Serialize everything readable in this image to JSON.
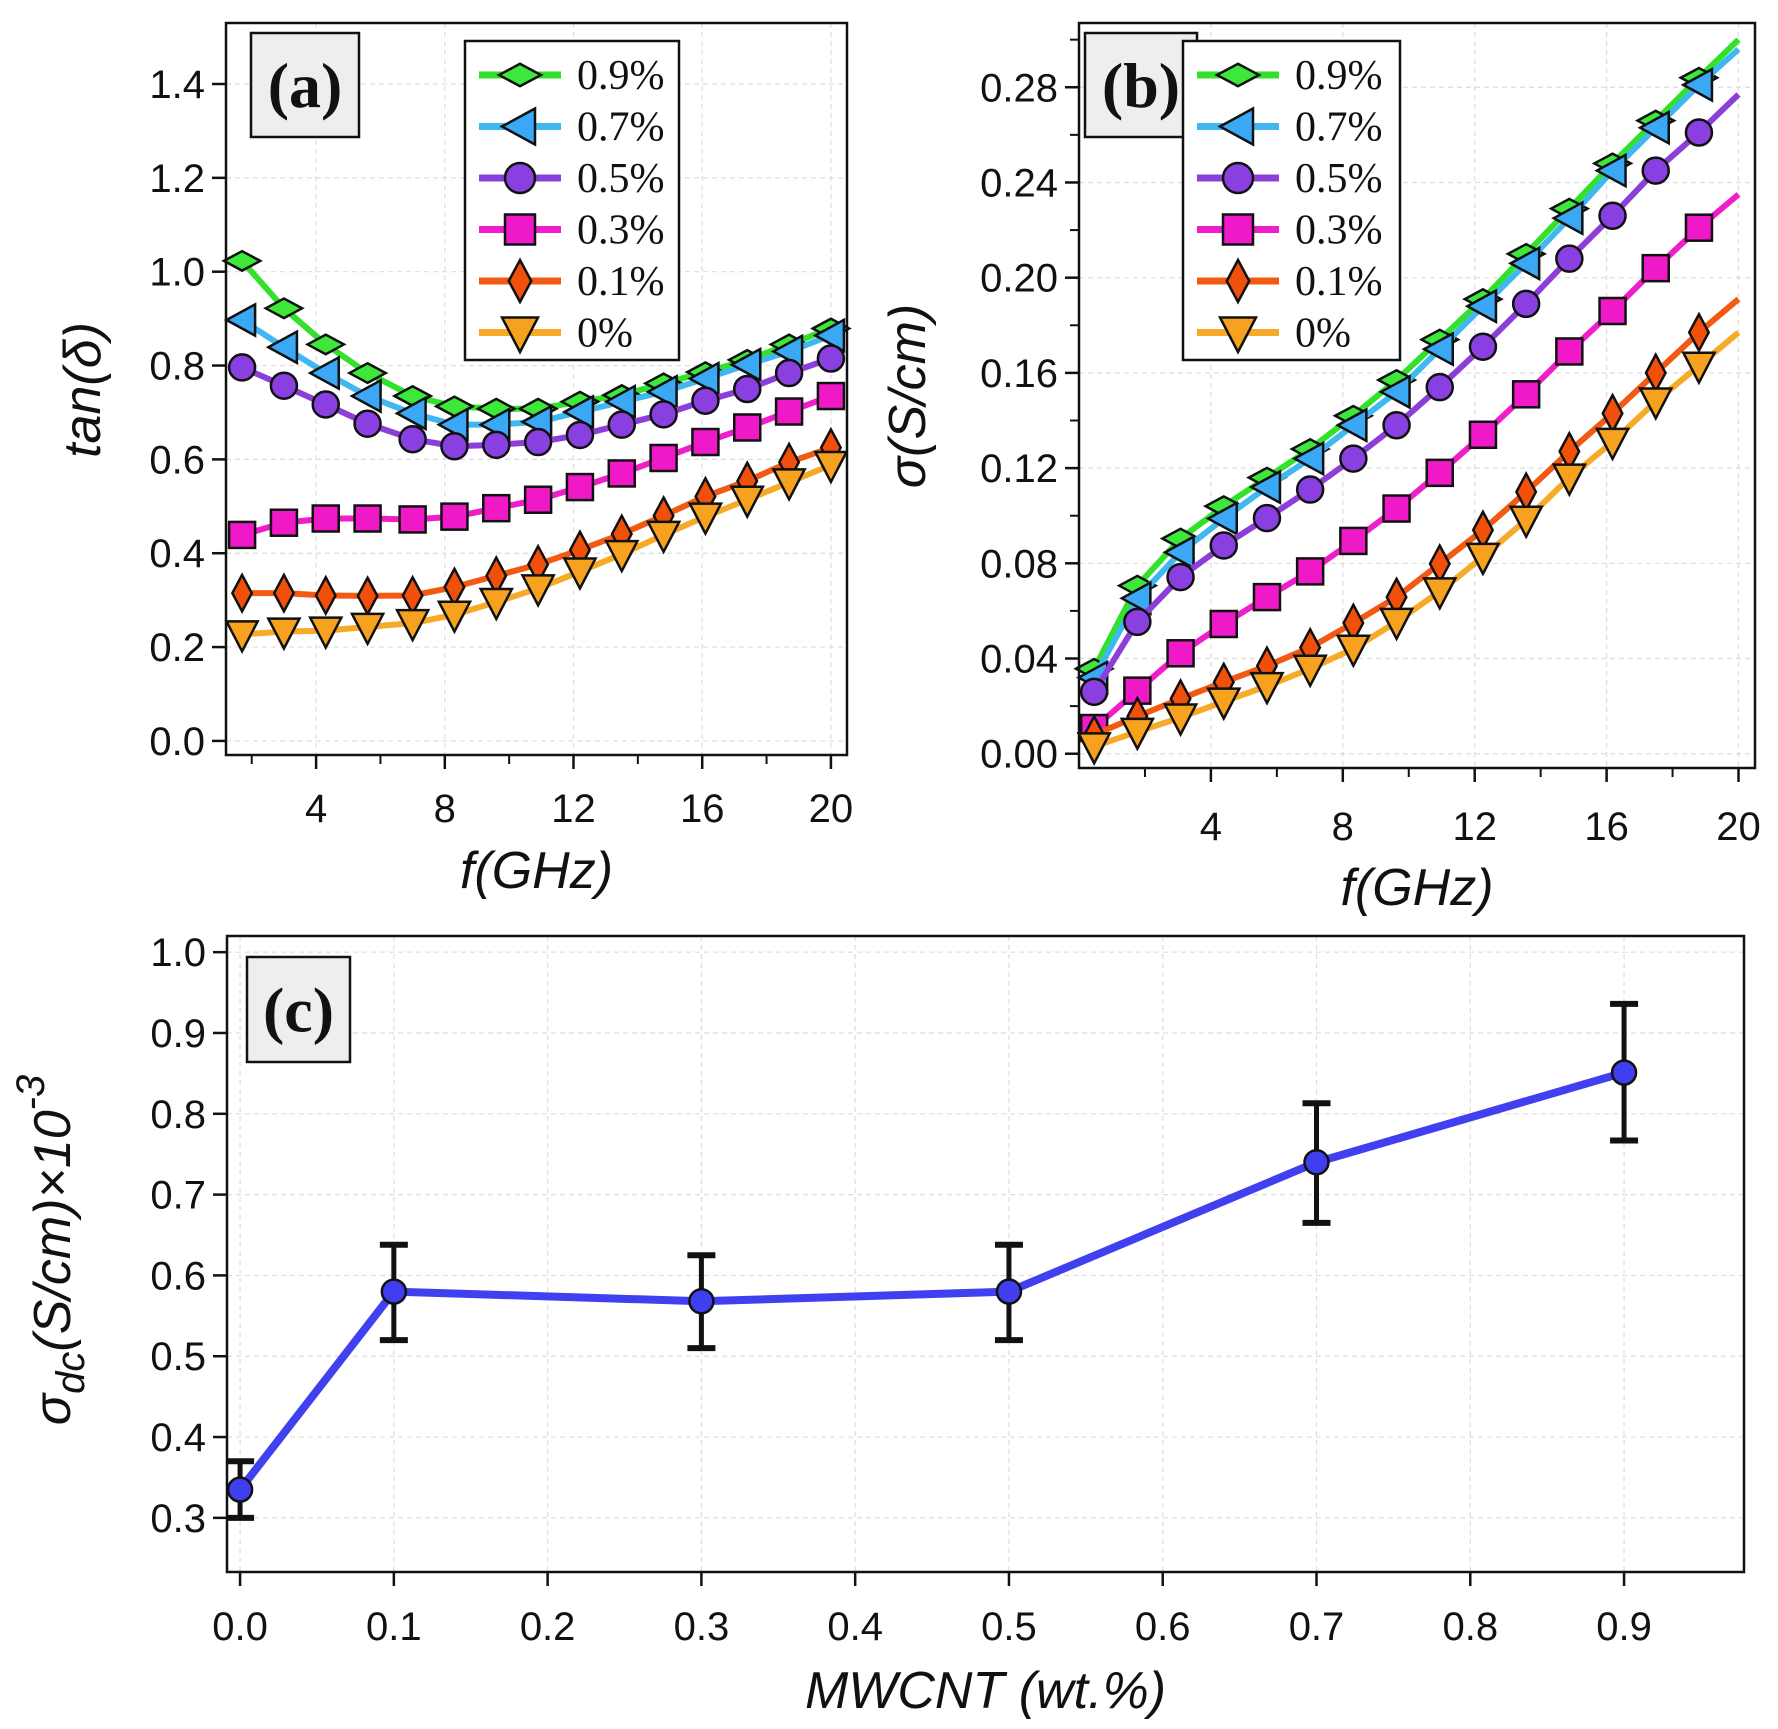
{
  "chart_data": [
    {
      "type": "line",
      "panel_label": "(a)",
      "title": "",
      "xlabel": "f(GHz)",
      "ylabel": "tan(δ)",
      "xlim": [
        1.2,
        20.5
      ],
      "ylim": [
        -0.03,
        1.53
      ],
      "xticks": [
        "4",
        "8",
        "12",
        "16",
        "20"
      ],
      "yticks": [
        "0.0",
        "0.2",
        "0.4",
        "0.6",
        "0.8",
        "1.0",
        "1.2",
        "1.4"
      ],
      "grid": true,
      "legend_position": "top-center",
      "x": [
        1.7,
        3.0,
        4.3,
        5.6,
        7.0,
        8.3,
        9.6,
        10.9,
        12.2,
        13.5,
        14.8,
        16.1,
        17.4,
        18.7,
        20.0
      ],
      "series": [
        {
          "name": "0.9%",
          "color": "#33e02a",
          "fill": "#3ee83a",
          "marker": "diamond-wide",
          "values": [
            1.023,
            0.922,
            0.845,
            0.784,
            0.735,
            0.713,
            0.708,
            0.708,
            0.723,
            0.737,
            0.762,
            0.786,
            0.812,
            0.845,
            0.879
          ]
        },
        {
          "name": "0.7%",
          "color": "#3fb8f0",
          "fill": "#3aa8f5",
          "marker": "triangle-left",
          "values": [
            0.897,
            0.839,
            0.784,
            0.735,
            0.698,
            0.674,
            0.674,
            0.68,
            0.701,
            0.723,
            0.744,
            0.772,
            0.802,
            0.83,
            0.864
          ]
        },
        {
          "name": "0.5%",
          "color": "#8c3fd8",
          "fill": "#8a3fe0",
          "marker": "circle",
          "values": [
            0.796,
            0.757,
            0.717,
            0.676,
            0.643,
            0.628,
            0.631,
            0.637,
            0.652,
            0.674,
            0.696,
            0.725,
            0.75,
            0.784,
            0.815
          ]
        },
        {
          "name": "0.3%",
          "color": "#f01ec8",
          "fill": "#f019c8",
          "marker": "square",
          "values": [
            0.439,
            0.465,
            0.474,
            0.474,
            0.472,
            0.478,
            0.496,
            0.514,
            0.541,
            0.57,
            0.603,
            0.637,
            0.668,
            0.702,
            0.735
          ]
        },
        {
          "name": "0.1%",
          "color": "#f25a14",
          "fill": "#f0500a",
          "marker": "diamond-thin",
          "values": [
            0.315,
            0.315,
            0.31,
            0.309,
            0.31,
            0.328,
            0.352,
            0.376,
            0.407,
            0.441,
            0.48,
            0.521,
            0.554,
            0.594,
            0.625
          ]
        },
        {
          "name": "0%",
          "color": "#f7a928",
          "fill": "#f7a21e",
          "marker": "triangle-down",
          "values": [
            0.227,
            0.233,
            0.235,
            0.243,
            0.251,
            0.269,
            0.296,
            0.325,
            0.361,
            0.398,
            0.439,
            0.478,
            0.514,
            0.551,
            0.588
          ]
        }
      ]
    },
    {
      "type": "line",
      "panel_label": "(b)",
      "title": "",
      "xlabel": "f(GHz)",
      "ylabel": "σ(S/cm)",
      "xlim": [
        0,
        20.5
      ],
      "ylim": [
        -0.006,
        0.307
      ],
      "xticks": [
        "4",
        "8",
        "12",
        "16",
        "20"
      ],
      "yticks": [
        "0.00",
        "0.04",
        "0.08",
        "0.12",
        "0.16",
        "0.20",
        "0.24",
        "0.28"
      ],
      "grid": true,
      "legend_position": "top-left",
      "x": [
        0.46,
        1.77,
        3.08,
        4.39,
        5.7,
        7.01,
        8.32,
        9.63,
        10.94,
        12.25,
        13.56,
        14.87,
        16.18,
        17.49,
        18.8
      ],
      "curve_end_x": 20.0,
      "series": [
        {
          "name": "0.9%",
          "color": "#33e02a",
          "fill": "#3ee83a",
          "marker": "diamond-wide",
          "values": [
            0.0357,
            0.0706,
            0.0904,
            0.104,
            0.116,
            0.128,
            0.142,
            0.157,
            0.174,
            0.191,
            0.21,
            0.229,
            0.248,
            0.266,
            0.284
          ],
          "end_value": 0.3
        },
        {
          "name": "0.7%",
          "color": "#3fb8f0",
          "fill": "#3aa8f5",
          "marker": "triangle-left",
          "values": [
            0.032,
            0.0653,
            0.0846,
            0.0988,
            0.112,
            0.124,
            0.138,
            0.152,
            0.17,
            0.188,
            0.206,
            0.225,
            0.245,
            0.263,
            0.281
          ],
          "end_value": 0.296
        },
        {
          "name": "0.5%",
          "color": "#8c3fd8",
          "fill": "#8a3fe0",
          "marker": "circle",
          "values": [
            0.026,
            0.0554,
            0.0742,
            0.0875,
            0.099,
            0.111,
            0.124,
            0.138,
            0.154,
            0.171,
            0.189,
            0.208,
            0.226,
            0.245,
            0.261
          ],
          "end_value": 0.277
        },
        {
          "name": "0.3%",
          "color": "#f01ec8",
          "fill": "#f019c8",
          "marker": "square",
          "values": [
            0.0108,
            0.0265,
            0.0422,
            0.0545,
            0.0658,
            0.0766,
            0.0894,
            0.103,
            0.118,
            0.134,
            0.151,
            0.169,
            0.186,
            0.204,
            0.221
          ],
          "end_value": 0.235
        },
        {
          "name": "0.1%",
          "color": "#f25a14",
          "fill": "#f0500a",
          "marker": "diamond-thin",
          "values": [
            0.008,
            0.0157,
            0.0231,
            0.0301,
            0.0369,
            0.0446,
            0.0549,
            0.0658,
            0.0798,
            0.094,
            0.11,
            0.127,
            0.143,
            0.16,
            0.177
          ],
          "end_value": 0.191
        },
        {
          "name": "0%",
          "color": "#f7a928",
          "fill": "#f7a21e",
          "marker": "triangle-down",
          "values": [
            0.0031,
            0.0092,
            0.0152,
            0.0219,
            0.0284,
            0.0357,
            0.0441,
            0.0554,
            0.0682,
            0.0827,
            0.0983,
            0.116,
            0.131,
            0.148,
            0.163
          ],
          "end_value": 0.177
        }
      ]
    },
    {
      "type": "line",
      "panel_label": "(c)",
      "title": "",
      "xlabel": "MWCNT (wt.%)",
      "ylabel_main": "σ",
      "ylabel_sub": "dc",
      "ylabel_rest": "(S/cm)×10",
      "ylabel_sup": "-3",
      "xlim": [
        -0.0085,
        0.978
      ],
      "ylim": [
        0.233,
        1.02
      ],
      "xticks": [
        "0.0",
        "0.1",
        "0.2",
        "0.3",
        "0.4",
        "0.5",
        "0.6",
        "0.7",
        "0.8",
        "0.9"
      ],
      "yticks": [
        "0.3",
        "0.4",
        "0.5",
        "0.6",
        "0.7",
        "0.8",
        "0.9",
        "1.0"
      ],
      "grid": true,
      "series": [
        {
          "name": "σdc",
          "color": "#4040f0",
          "fill": "#3f3ff0",
          "marker": "circle",
          "x": [
            0.0,
            0.1,
            0.3,
            0.5,
            0.7,
            0.9
          ],
          "values": [
            0.335,
            0.58,
            0.568,
            0.58,
            0.74,
            0.851
          ],
          "err_low": [
            0.3,
            0.52,
            0.51,
            0.52,
            0.665,
            0.767
          ],
          "err_high": [
            0.37,
            0.638,
            0.625,
            0.638,
            0.813,
            0.936
          ]
        }
      ]
    }
  ]
}
